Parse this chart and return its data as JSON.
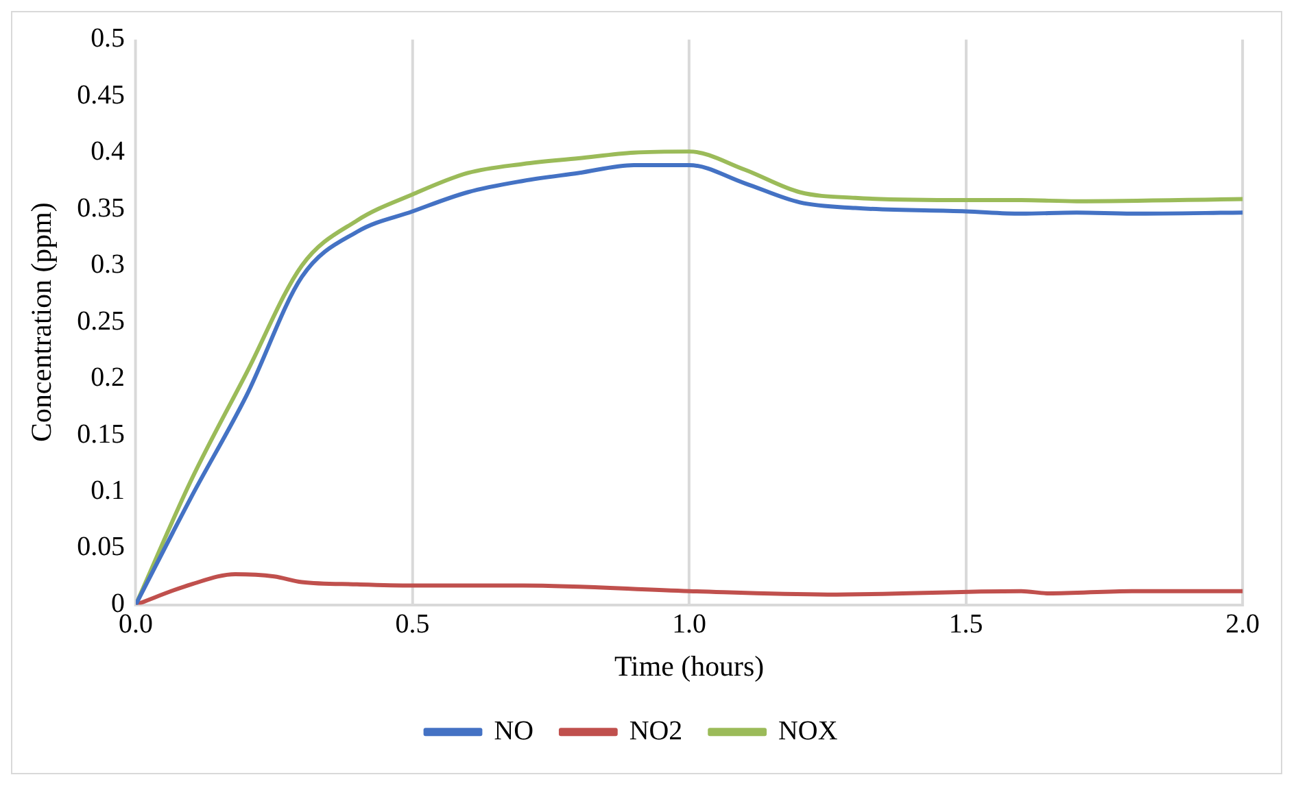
{
  "chart_data": {
    "type": "line",
    "xlabel": "Time (hours)",
    "ylabel": "Concentration (ppm)",
    "xlim": [
      0,
      2
    ],
    "xticks": [
      {
        "value": 0,
        "label": "0.0"
      },
      {
        "value": 0.5,
        "label": "0.5"
      },
      {
        "value": 1,
        "label": "1.0"
      },
      {
        "value": 1.5,
        "label": "1.5"
      },
      {
        "value": 2,
        "label": "2.0"
      }
    ],
    "ylim": [
      0,
      0.5
    ],
    "yticks": [
      0,
      0.05,
      0.1,
      0.15,
      0.2,
      0.25,
      0.3,
      0.35,
      0.4,
      0.45,
      0.5
    ],
    "grid": "x",
    "legend": "bottom",
    "marker": "none",
    "line_style": "solid",
    "series": [
      {
        "name": "NO",
        "color": "#4472c4",
        "x": [
          0,
          0.1,
          0.2,
          0.3,
          0.4,
          0.5,
          0.6,
          0.7,
          0.8,
          0.9,
          1.0,
          1.1,
          1.2,
          1.3,
          1.5,
          1.6,
          1.7,
          1.8,
          2.0
        ],
        "values": [
          0,
          0.095,
          0.185,
          0.29,
          0.33,
          0.348,
          0.365,
          0.375,
          0.382,
          0.389,
          0.389,
          0.373,
          0.356,
          0.351,
          0.348,
          0.346,
          0.347,
          0.346,
          0.347
        ]
      },
      {
        "name": "NO2",
        "color": "#c0504d",
        "x": [
          0,
          0.1,
          0.18,
          0.25,
          0.3,
          0.4,
          0.5,
          0.7,
          1.0,
          1.25,
          1.6,
          1.65,
          1.8,
          2.0
        ],
        "values": [
          0,
          0.018,
          0.027,
          0.025,
          0.02,
          0.018,
          0.017,
          0.017,
          0.012,
          0.009,
          0.012,
          0.01,
          0.012,
          0.012
        ]
      },
      {
        "name": "NOX",
        "color": "#9bbb59",
        "x": [
          0,
          0.1,
          0.2,
          0.3,
          0.4,
          0.5,
          0.6,
          0.7,
          0.8,
          0.9,
          1.0,
          1.1,
          1.2,
          1.3,
          1.5,
          1.6,
          1.7,
          2.0
        ],
        "values": [
          0,
          0.11,
          0.205,
          0.3,
          0.34,
          0.363,
          0.382,
          0.39,
          0.395,
          0.4,
          0.401,
          0.385,
          0.365,
          0.36,
          0.358,
          0.358,
          0.357,
          0.359
        ]
      }
    ]
  }
}
